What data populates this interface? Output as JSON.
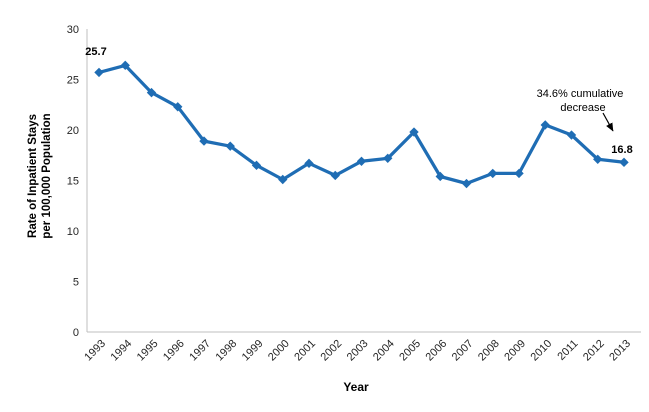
{
  "chart_data": {
    "type": "line",
    "title": "",
    "xlabel": "Year",
    "ylabel_line1": "Rate of Inpatient Stays",
    "ylabel_line2": "per 100,000 Population",
    "categories": [
      "1993",
      "1994",
      "1995",
      "1996",
      "1997",
      "1998",
      "1999",
      "2000",
      "2001",
      "2002",
      "2003",
      "2004",
      "2005",
      "2006",
      "2007",
      "2008",
      "2009",
      "2010",
      "2011",
      "2012",
      "2013"
    ],
    "values": [
      25.7,
      26.4,
      23.7,
      22.3,
      18.9,
      18.4,
      16.5,
      15.1,
      16.7,
      15.5,
      16.9,
      17.2,
      19.8,
      15.4,
      14.7,
      15.7,
      15.7,
      20.5,
      19.5,
      17.1,
      16.8
    ],
    "ylim": [
      0,
      30
    ],
    "yticks": [
      0,
      5,
      10,
      15,
      20,
      25,
      30
    ],
    "grid": false,
    "legend": "none",
    "marker": "diamond",
    "line_color": "#1F6DB4",
    "axis_color": "#BFBFBF",
    "tick_text_color": "#262626",
    "first_point_label": "25.7",
    "last_point_label": "16.8",
    "annotation": {
      "line1": "34.6% cumulative",
      "line2": "decrease"
    }
  }
}
